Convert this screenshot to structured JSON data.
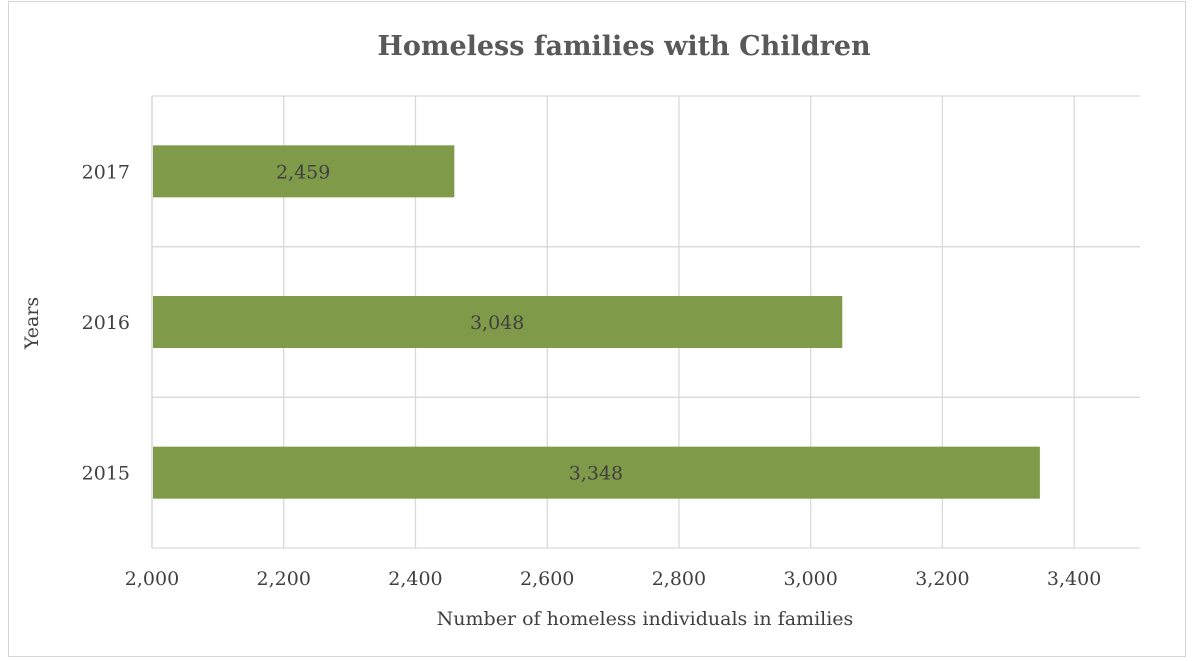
{
  "chart_data": {
    "type": "bar",
    "orientation": "horizontal",
    "title": "Homeless families with Children",
    "xlabel": "Number of homeless individuals in families",
    "ylabel": "Years",
    "categories": [
      "2015",
      "2016",
      "2017"
    ],
    "values": [
      3348,
      3048,
      2459
    ],
    "data_labels": [
      "3,348",
      "3,048",
      "2,459"
    ],
    "xlim": [
      2000,
      3500
    ],
    "x_ticks": [
      2000,
      2200,
      2400,
      2600,
      2800,
      3000,
      3200,
      3400
    ],
    "x_tick_labels": [
      "2,000",
      "2,200",
      "2,400",
      "2,600",
      "2,800",
      "3,000",
      "3,200",
      "3,400"
    ],
    "grid": true,
    "legend": "none",
    "bar_color": "#7f9a48"
  }
}
